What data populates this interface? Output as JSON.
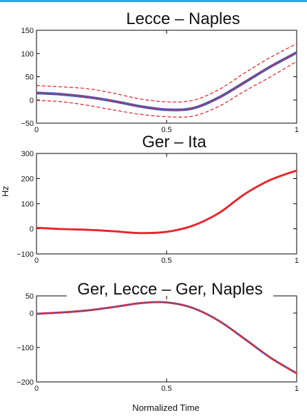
{
  "colors": {
    "top_rule": "#2aa7e0",
    "red": "#e8262c",
    "blue": "#4a5bb5"
  },
  "figure": {
    "ylabel": "Hz",
    "xlabel": "Normalized Time"
  },
  "chart_data": [
    {
      "type": "line",
      "title": "Lecce – Naples",
      "xlim": [
        0,
        1
      ],
      "ylim": [
        -50,
        150
      ],
      "xticks": [
        "0",
        "0.5",
        "1"
      ],
      "yticks": [
        "−50",
        "0",
        "50",
        "100",
        "150"
      ],
      "ytick_values": [
        -50,
        0,
        50,
        100,
        150
      ],
      "x": [
        0,
        0.1,
        0.2,
        0.3,
        0.4,
        0.5,
        0.6,
        0.7,
        0.8,
        0.9,
        1.0
      ],
      "series": [
        {
          "style": "solid-blue",
          "values": [
            15,
            12,
            6,
            -3,
            -14,
            -21,
            -18,
            5,
            38,
            72,
            102
          ]
        },
        {
          "style": "dashed-red",
          "values": [
            15,
            12,
            6,
            -3,
            -14,
            -21,
            -18,
            5,
            38,
            72,
            102
          ]
        },
        {
          "style": "dashed-red",
          "values": [
            31,
            28,
            24,
            14,
            2,
            -4,
            -1,
            22,
            58,
            92,
            121
          ]
        },
        {
          "style": "dashed-red",
          "values": [
            -1,
            -4,
            -12,
            -22,
            -31,
            -36,
            -35,
            -14,
            19,
            50,
            83
          ]
        }
      ]
    },
    {
      "type": "line",
      "title": "Ger – Ita",
      "xlim": [
        0,
        1
      ],
      "ylim": [
        -100,
        300
      ],
      "xticks": [
        "0",
        "0.5",
        "1"
      ],
      "yticks": [
        "−100",
        "0",
        "100",
        "200",
        "300"
      ],
      "ytick_values": [
        -100,
        0,
        100,
        200,
        300
      ],
      "x": [
        0,
        0.1,
        0.2,
        0.3,
        0.4,
        0.5,
        0.6,
        0.7,
        0.8,
        0.9,
        1.0
      ],
      "series": [
        {
          "style": "solid-red",
          "values": [
            4,
            -1,
            -4,
            -10,
            -17,
            -12,
            12,
            62,
            138,
            195,
            232
          ]
        }
      ]
    },
    {
      "type": "line",
      "title": "Ger, Lecce – Ger, Naples",
      "xlim": [
        0,
        1
      ],
      "ylim": [
        -200,
        50
      ],
      "xticks": [
        "0",
        "0.5",
        "1"
      ],
      "yticks": [
        "−200",
        "−100",
        "0",
        "50"
      ],
      "ytick_values": [
        -200,
        -100,
        0,
        50
      ],
      "x": [
        0,
        0.1,
        0.2,
        0.3,
        0.4,
        0.5,
        0.6,
        0.7,
        0.8,
        0.9,
        1.0
      ],
      "series": [
        {
          "style": "solid-red",
          "values": [
            -2,
            2,
            8,
            18,
            29,
            31,
            15,
            -22,
            -75,
            -130,
            -175
          ]
        },
        {
          "style": "dashed-blue",
          "values": [
            -2,
            2,
            8,
            18,
            29,
            31,
            15,
            -22,
            -75,
            -130,
            -175
          ]
        }
      ]
    }
  ]
}
